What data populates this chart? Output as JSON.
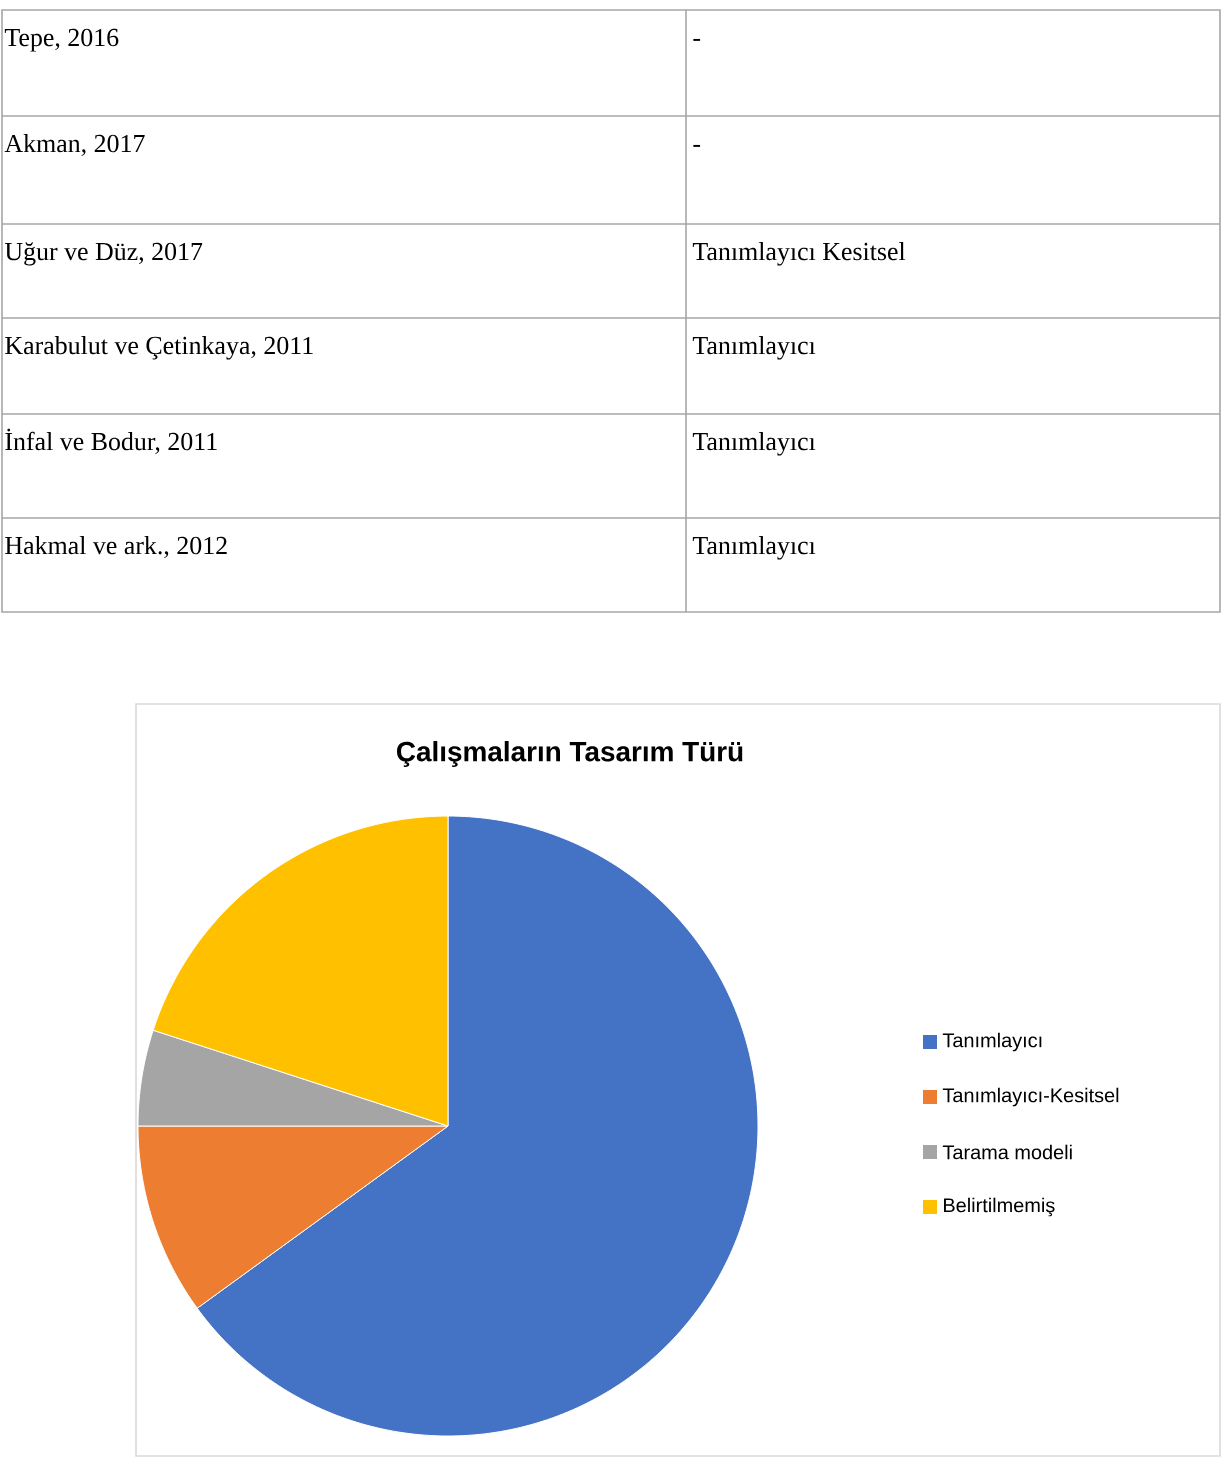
{
  "chart_data": [
    {
      "type": "other",
      "annotations": [
        "Tepe, 2016",
        "-",
        "Akman, 2017",
        "-",
        "Uğur ve Düz, 2017",
        "Tanımlayıcı Kesitsel",
        "Karabulut ve Çetinkaya, 2011",
        "Tanımlayıcı",
        "İnfal ve Bodur, 2011",
        "Tanımlayıcı",
        "Hakmal ve ark., 2012",
        "Tanımlayıcı"
      ]
    },
    {
      "type": "pie",
      "title": "Çalışmaların Tasarım Türü",
      "categories": [
        "Tanımlayıcı",
        "Tanımlayıcı-Kesitsel",
        "Tarama modeli",
        "Belirtilmemiş"
      ],
      "values": [
        65,
        10,
        5,
        20
      ],
      "colors": [
        "#4472c4",
        "#ed7d31",
        "#a5a5a5",
        "#ffc000"
      ],
      "legend": "right"
    }
  ]
}
